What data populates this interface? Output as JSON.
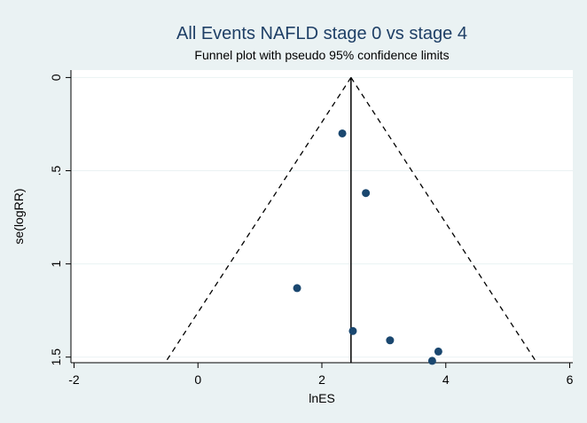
{
  "chart_data": {
    "type": "scatter",
    "title": "All Events NAFLD stage 0 vs stage 4",
    "subtitle": "Funnel plot with pseudo 95% confidence limits",
    "xlabel": "lnES",
    "ylabel": "se(logRR)",
    "xlim": [
      -2.05,
      6.05
    ],
    "ylim": [
      -0.04,
      1.53
    ],
    "y_reversed": true,
    "grid": true,
    "x_ticks": [
      -2,
      0,
      2,
      4,
      6
    ],
    "x_tick_labels": [
      "-2",
      "0",
      "2",
      "4",
      "6"
    ],
    "y_ticks": [
      0,
      0.5,
      1,
      1.5
    ],
    "y_tick_labels": [
      "0",
      ".5",
      "1",
      "1.5"
    ],
    "pooled_estimate": 2.47,
    "funnel_se_max": 1.53,
    "points": [
      {
        "x": 2.33,
        "y": 0.3
      },
      {
        "x": 2.71,
        "y": 0.62
      },
      {
        "x": 1.6,
        "y": 1.13
      },
      {
        "x": 2.5,
        "y": 1.36
      },
      {
        "x": 3.1,
        "y": 1.41
      },
      {
        "x": 3.88,
        "y": 1.47
      },
      {
        "x": 3.78,
        "y": 1.52
      }
    ],
    "colors": {
      "background": "#eaf2f3",
      "plot_background": "#ffffff",
      "marker": "#1a476f",
      "title": "#1e3f66",
      "grid": "#eaf2f3"
    }
  }
}
